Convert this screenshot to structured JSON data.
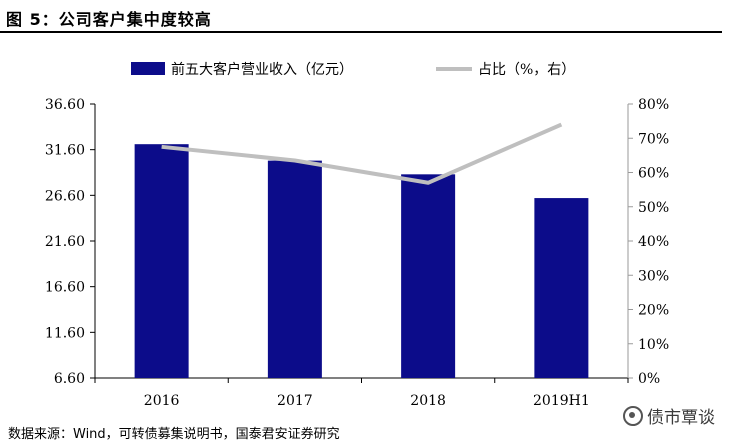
{
  "figure_title": "图 5：公司客户集中度较高",
  "source": "数据来源：Wind，可转债募集说明书，国泰君安证券研究",
  "watermark": "债市覃谈",
  "colors": {
    "bar": "#0c0c8a",
    "line": "#bfbfbf",
    "axis": "#000000",
    "right_axis": "#9a9a9a"
  },
  "chart_data": {
    "type": "bar",
    "categories": [
      "2016",
      "2017",
      "2018",
      "2019H1"
    ],
    "series": [
      {
        "name": "前五大客户营业收入（亿元）",
        "kind": "bar",
        "axis": "left",
        "values": [
          32.2,
          30.4,
          28.9,
          26.3
        ]
      },
      {
        "name": "占比（%，右）",
        "kind": "line",
        "axis": "right",
        "values": [
          67.5,
          63.5,
          57.0,
          74.0
        ]
      }
    ],
    "left_axis": {
      "min": 6.6,
      "max": 36.6,
      "ticks": [
        "6.60",
        "11.60",
        "16.60",
        "21.60",
        "26.60",
        "31.60",
        "36.60"
      ]
    },
    "right_axis": {
      "min": 0,
      "max": 80,
      "ticks": [
        "0%",
        "10%",
        "20%",
        "30%",
        "40%",
        "50%",
        "60%",
        "70%",
        "80%"
      ]
    },
    "legend": [
      "前五大客户营业收入（亿元）",
      "占比（%，右）"
    ],
    "legend_position": "top"
  }
}
